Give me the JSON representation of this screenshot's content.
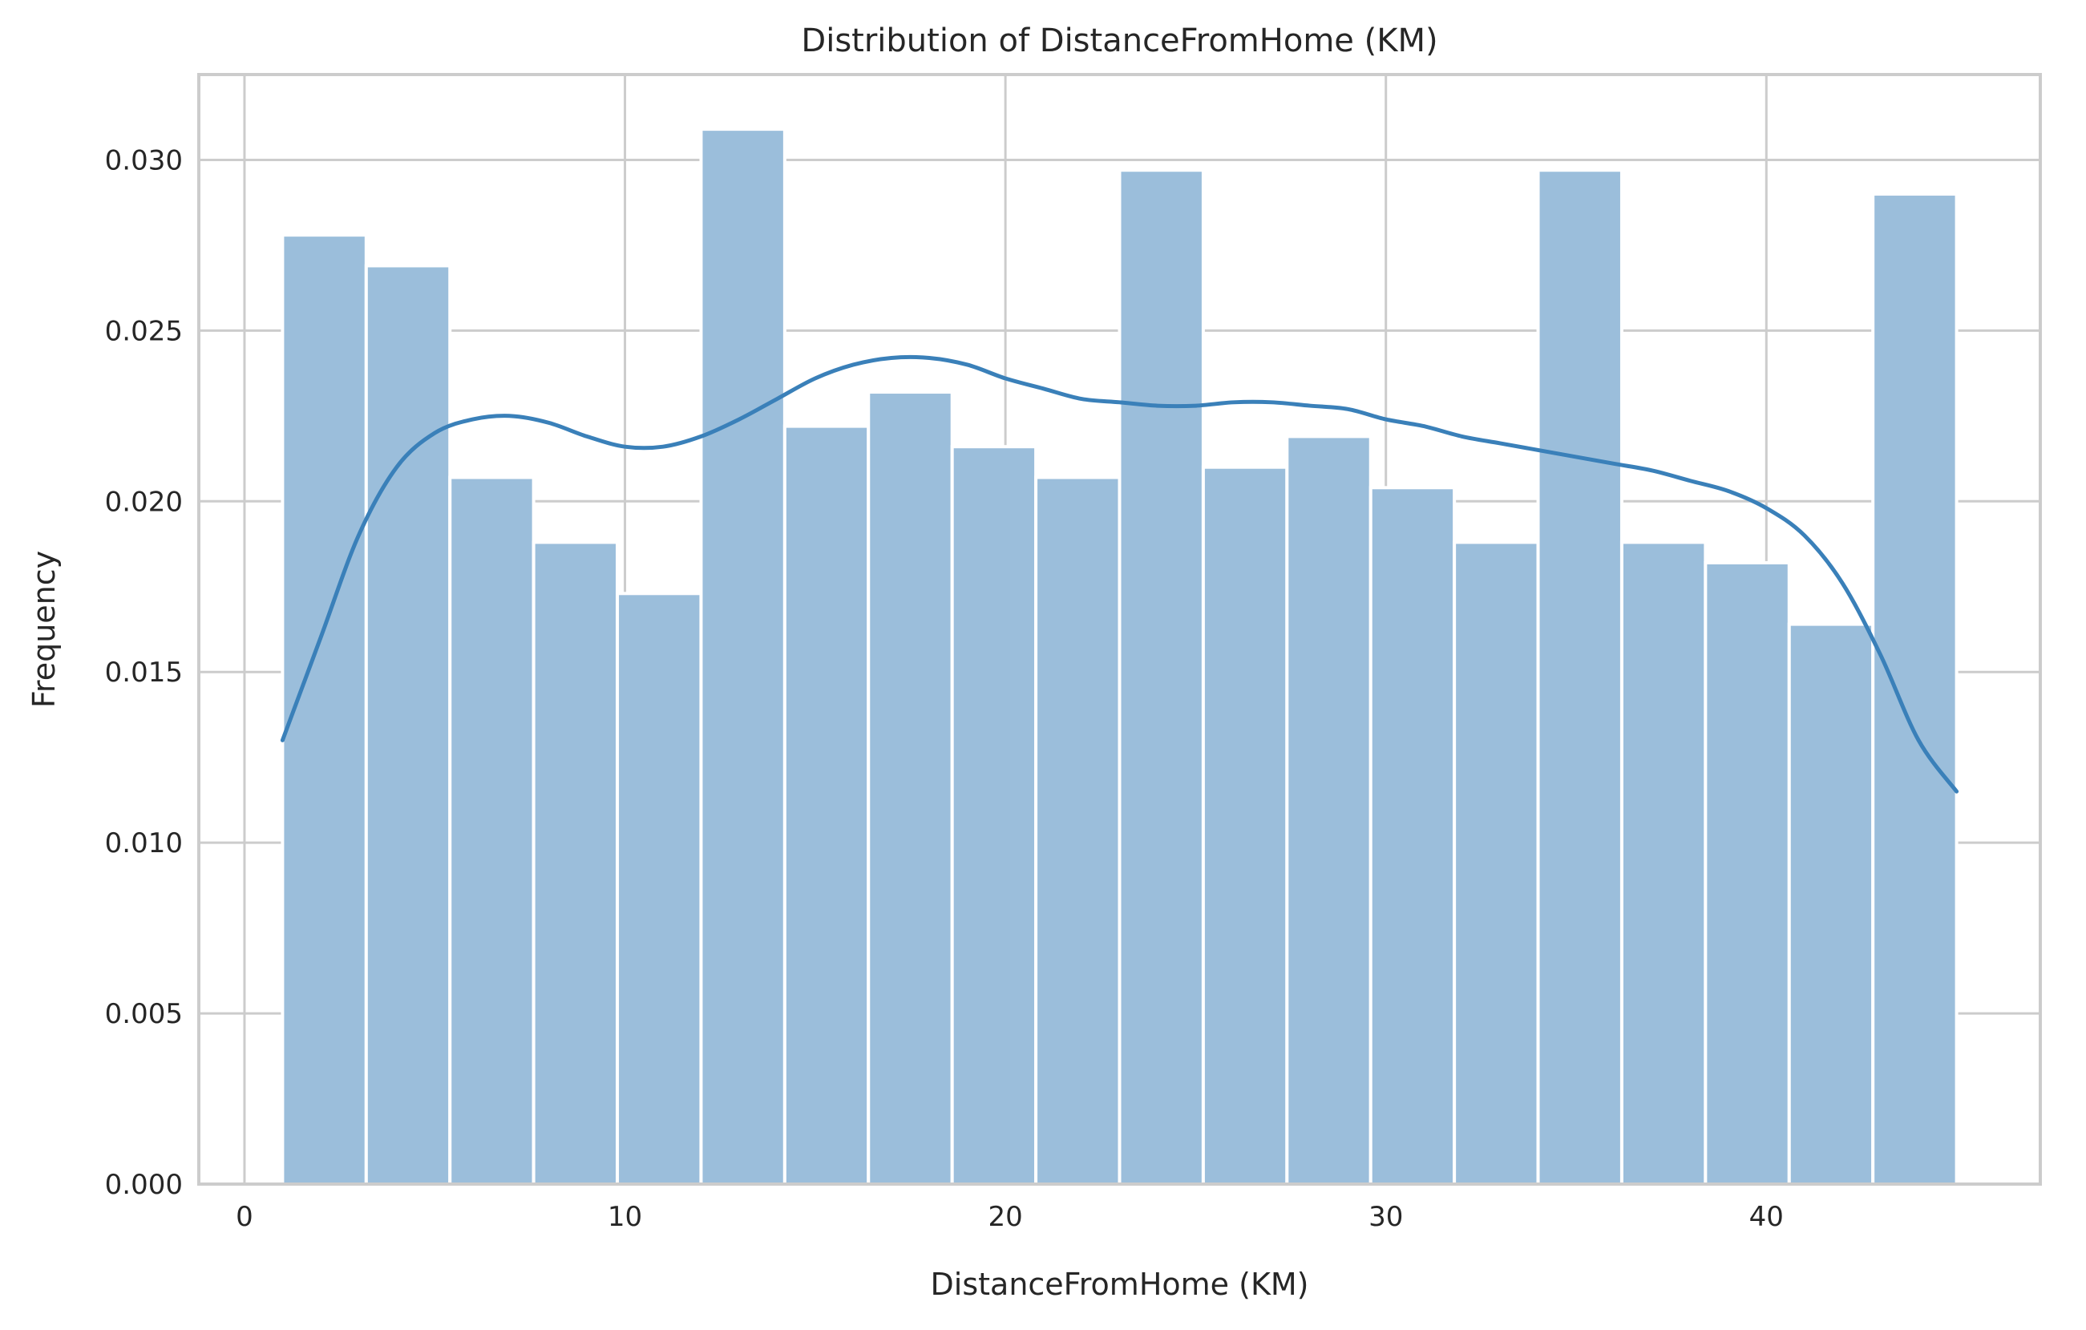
{
  "chart_data": {
    "type": "bar",
    "title": "Distribution of DistanceFromHome (KM)",
    "xlabel": "DistanceFromHome (KM)",
    "ylabel": "Frequency",
    "xlim": [
      -1.2,
      47.2
    ],
    "ylim": [
      0,
      0.0325
    ],
    "grid": true,
    "xticks": [
      0,
      10,
      20,
      30,
      40
    ],
    "xtick_labels": [
      "0",
      "10",
      "20",
      "30",
      "40"
    ],
    "yticks": [
      0.0,
      0.005,
      0.01,
      0.015,
      0.02,
      0.025,
      0.03
    ],
    "ytick_labels": [
      "0.000",
      "0.005",
      "0.010",
      "0.015",
      "0.020",
      "0.025",
      "0.030"
    ],
    "bins": {
      "edges": [
        1,
        3.2,
        5.4,
        7.6,
        9.8,
        12,
        14.2,
        16.4,
        18.6,
        20.8,
        23,
        25.2,
        27.4,
        29.6,
        31.8,
        34,
        36.2,
        38.4,
        40.6,
        42.8,
        45
      ],
      "values": [
        0.0278,
        0.0269,
        0.0207,
        0.0188,
        0.0173,
        0.0309,
        0.0222,
        0.0232,
        0.0216,
        0.0207,
        0.0297,
        0.021,
        0.0219,
        0.0204,
        0.0188,
        0.0297,
        0.0188,
        0.0182,
        0.0164,
        0.029
      ]
    },
    "kde": {
      "x": [
        1,
        2,
        3,
        4,
        5,
        6,
        7,
        8,
        9,
        10,
        11,
        12,
        13,
        14,
        15,
        16,
        17,
        18,
        19,
        20,
        21,
        22,
        23,
        24,
        25,
        26,
        27,
        28,
        29,
        30,
        31,
        32,
        33,
        34,
        35,
        36,
        37,
        38,
        39,
        40,
        41,
        42,
        43,
        44,
        45
      ],
      "y": [
        0.013,
        0.016,
        0.019,
        0.021,
        0.022,
        0.0224,
        0.0225,
        0.0223,
        0.0219,
        0.0216,
        0.0216,
        0.0219,
        0.0224,
        0.023,
        0.0236,
        0.024,
        0.0242,
        0.0242,
        0.024,
        0.0236,
        0.0233,
        0.023,
        0.0229,
        0.0228,
        0.0228,
        0.0229,
        0.0229,
        0.0228,
        0.0227,
        0.0224,
        0.0222,
        0.0219,
        0.0217,
        0.0215,
        0.0213,
        0.0211,
        0.0209,
        0.0206,
        0.0203,
        0.0198,
        0.019,
        0.0176,
        0.0155,
        0.013,
        0.0115
      ]
    },
    "colors": {
      "bar_fill": "#9bbedb",
      "kde_line": "#3a80b9",
      "grid": "#cccccc",
      "frame": "#cccccc"
    }
  }
}
